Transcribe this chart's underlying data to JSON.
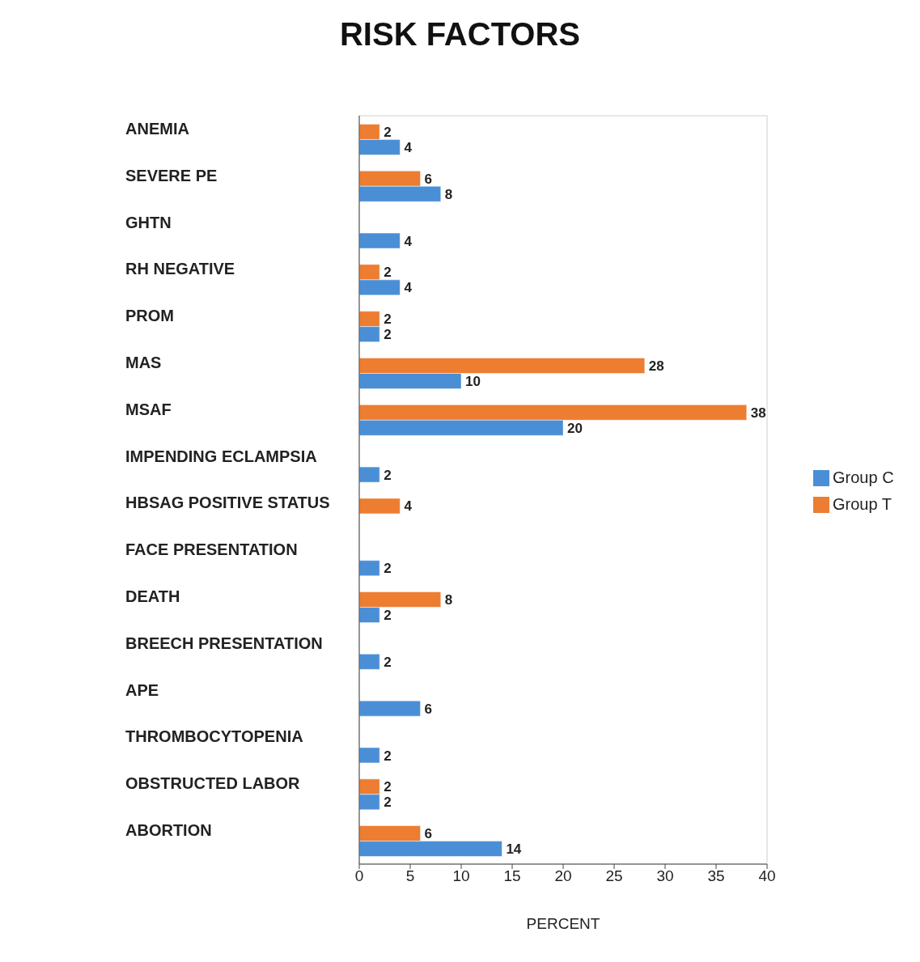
{
  "chart_data": {
    "type": "bar",
    "orientation": "horizontal",
    "title": "RISK FACTORS",
    "xlabel": "PERCENT",
    "categories": [
      "ANEMIA",
      "SEVERE PE",
      "GHTN",
      "RH NEGATIVE",
      "PROM",
      "MAS",
      "MSAF",
      "IMPENDING ECLAMPSIA",
      "HBSAG POSITIVE STATUS",
      "FACE PRESENTATION",
      "DEATH",
      "BREECH PRESENTATION",
      "APE",
      "THROMBOCYTOPENIA",
      "OBSTRUCTED LABOR",
      "ABORTION"
    ],
    "series": [
      {
        "name": "Group C",
        "color": "#4a8fd6",
        "values": [
          4,
          8,
          4,
          4,
          2,
          10,
          20,
          2,
          null,
          2,
          2,
          2,
          6,
          2,
          2,
          14
        ]
      },
      {
        "name": "Group T",
        "color": "#ed7d31",
        "values": [
          2,
          6,
          null,
          2,
          2,
          28,
          38,
          null,
          4,
          null,
          8,
          null,
          null,
          null,
          2,
          6
        ]
      }
    ],
    "xlim": [
      0,
      40
    ],
    "xticks": [
      0,
      5,
      10,
      15,
      20,
      25,
      30,
      35,
      40
    ],
    "data_labels": true,
    "grid": false,
    "legend": "right"
  }
}
